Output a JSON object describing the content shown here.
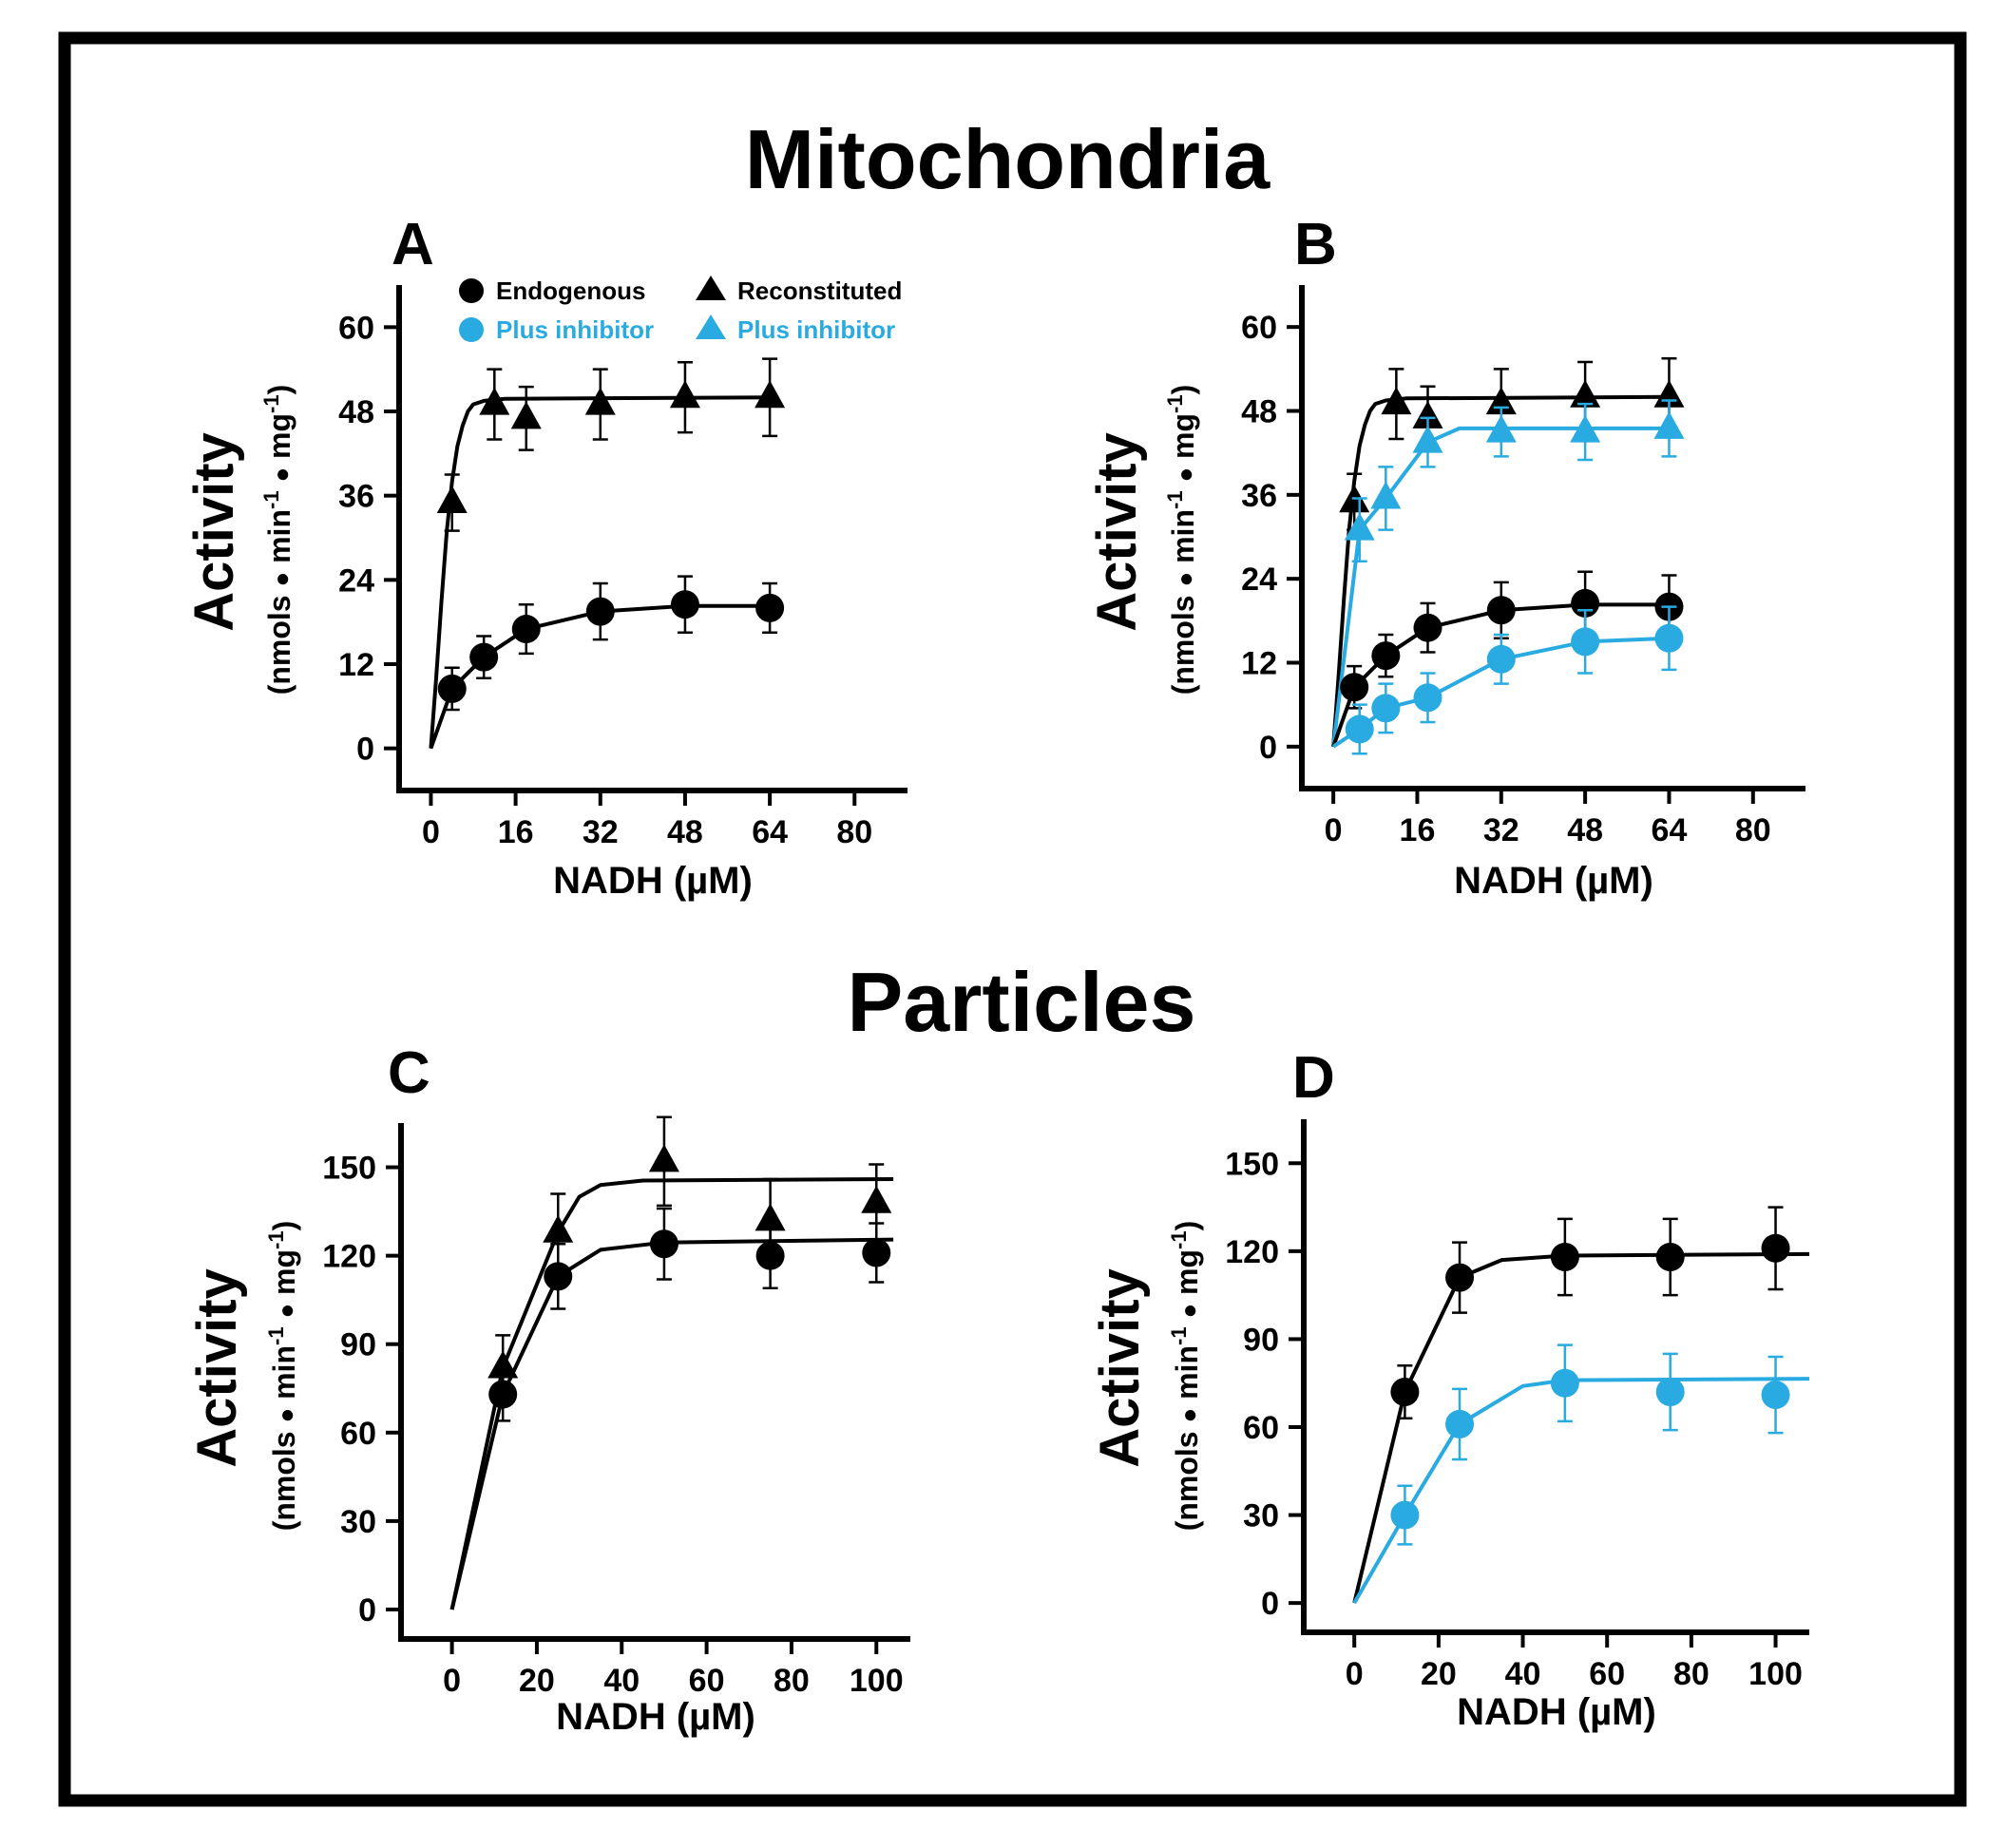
{
  "colors": {
    "black": "#000000",
    "blue": "#29abe2"
  },
  "section_titles": {
    "top": "Mitochondria",
    "bottom": "Particles"
  },
  "legend": [
    {
      "label": "Endogenous",
      "marker": "circle",
      "color": "#000000"
    },
    {
      "label": "Plus inhibitor",
      "marker": "circle",
      "color": "#29abe2"
    },
    {
      "label": "Reconstituted",
      "marker": "triangle",
      "color": "#000000"
    },
    {
      "label": "Plus inhibitor",
      "marker": "triangle",
      "color": "#29abe2"
    }
  ],
  "y_title": "Activity",
  "y_units": [
    "(nmols ",
    "●",
    " min",
    "-1",
    " ",
    "●",
    " mg",
    "-1",
    ")"
  ],
  "chart_data": [
    {
      "panel": "A",
      "type": "scatter",
      "xlabel": "NADH (µM)",
      "xlim": [
        -6,
        90
      ],
      "ylim": [
        -6,
        66
      ],
      "xticks": [
        0,
        16,
        32,
        48,
        64,
        80
      ],
      "yticks": [
        0,
        12,
        24,
        36,
        48,
        60
      ],
      "series": [
        {
          "name": "Reconstituted",
          "marker": "triangle",
          "color": "#000000",
          "x": [
            4,
            12,
            18,
            32,
            48,
            64
          ],
          "y": [
            35,
            49,
            47,
            49,
            50,
            50
          ],
          "err": [
            4,
            5,
            4.5,
            5,
            5,
            5.5
          ],
          "fit": [
            [
              0,
              0
            ],
            [
              1,
              10
            ],
            [
              2,
              21
            ],
            [
              3,
              31
            ],
            [
              4,
              38
            ],
            [
              5,
              43
            ],
            [
              6,
              46
            ],
            [
              7,
              48
            ],
            [
              8,
              49
            ],
            [
              10,
              49.5
            ],
            [
              14,
              49.8
            ],
            [
              64,
              50
            ]
          ]
        },
        {
          "name": "Endogenous",
          "marker": "circle",
          "color": "#000000",
          "x": [
            4,
            10,
            18,
            32,
            48,
            64
          ],
          "y": [
            8.5,
            13,
            17,
            19.5,
            20.5,
            20
          ],
          "err": [
            3,
            3,
            3.5,
            4,
            4,
            3.5
          ],
          "fit": [
            [
              0,
              0
            ],
            [
              4,
              8.5
            ],
            [
              10,
              13
            ],
            [
              18,
              17
            ],
            [
              32,
              19.5
            ],
            [
              48,
              20.3
            ],
            [
              64,
              20.3
            ]
          ]
        }
      ]
    },
    {
      "panel": "B",
      "type": "scatter",
      "xlabel": "NADH (µM)",
      "xlim": [
        -6,
        90
      ],
      "ylim": [
        -6,
        66
      ],
      "xticks": [
        0,
        16,
        32,
        48,
        64,
        80
      ],
      "yticks": [
        0,
        12,
        24,
        36,
        48,
        60
      ],
      "series": [
        {
          "name": "Reconstituted",
          "marker": "triangle",
          "color": "#000000",
          "x": [
            4,
            12,
            18,
            32,
            48,
            64
          ],
          "y": [
            35,
            49,
            47,
            49,
            50,
            50
          ],
          "err": [
            4,
            5,
            4.5,
            5,
            5,
            5.5
          ],
          "fit": [
            [
              0,
              0
            ],
            [
              1,
              10
            ],
            [
              2,
              21
            ],
            [
              3,
              31
            ],
            [
              4,
              38
            ],
            [
              5,
              43
            ],
            [
              6,
              46
            ],
            [
              7,
              48
            ],
            [
              8,
              49
            ],
            [
              10,
              49.5
            ],
            [
              14,
              49.8
            ],
            [
              64,
              50
            ]
          ]
        },
        {
          "name": "Plus inhibitor (reconstituted)",
          "marker": "triangle",
          "color": "#29abe2",
          "x": [
            5,
            10,
            18,
            32,
            48,
            64
          ],
          "y": [
            31,
            35.5,
            43.5,
            45,
            45,
            45.5
          ],
          "err": [
            4.5,
            4.5,
            3.5,
            3.5,
            4,
            4
          ],
          "fit": [
            [
              0,
              0
            ],
            [
              5,
              31
            ],
            [
              10,
              35.5
            ],
            [
              18,
              43.5
            ],
            [
              24,
              45.5
            ],
            [
              64,
              45.5
            ]
          ]
        },
        {
          "name": "Endogenous",
          "marker": "circle",
          "color": "#000000",
          "x": [
            4,
            10,
            18,
            32,
            48,
            64
          ],
          "y": [
            8.5,
            13,
            17,
            19.5,
            20.5,
            20
          ],
          "err": [
            3,
            3,
            3.5,
            4,
            4.5,
            4.5
          ],
          "fit": [
            [
              0,
              0
            ],
            [
              4,
              8.5
            ],
            [
              10,
              13
            ],
            [
              18,
              17
            ],
            [
              32,
              19.5
            ],
            [
              48,
              20.3
            ],
            [
              64,
              20.3
            ]
          ]
        },
        {
          "name": "Plus inhibitor (endogenous)",
          "marker": "circle",
          "color": "#29abe2",
          "x": [
            5,
            10,
            18,
            32,
            48,
            64
          ],
          "y": [
            2.5,
            5.5,
            7,
            12.5,
            15,
            15.5
          ],
          "err": [
            3.5,
            3.5,
            3.5,
            3.5,
            4.5,
            4.5
          ],
          "fit": [
            [
              0,
              0
            ],
            [
              5,
              2.5
            ],
            [
              10,
              5.5
            ],
            [
              18,
              7
            ],
            [
              32,
              12.5
            ],
            [
              48,
              15
            ],
            [
              64,
              15.5
            ]
          ]
        }
      ]
    },
    {
      "panel": "C",
      "type": "scatter",
      "xlabel": "NADH (µM)",
      "xlim": [
        -12,
        108
      ],
      "ylim": [
        -10,
        165
      ],
      "xticks": [
        0,
        20,
        40,
        60,
        80,
        100
      ],
      "yticks": [
        0,
        30,
        60,
        90,
        120,
        150
      ],
      "series": [
        {
          "name": "Reconstituted",
          "marker": "triangle",
          "color": "#000000",
          "x": [
            12,
            25,
            50,
            75,
            100
          ],
          "y": [
            82,
            128,
            152,
            132,
            138
          ],
          "err": [
            11,
            13,
            15,
            14,
            13
          ],
          "fit": [
            [
              0,
              0
            ],
            [
              12,
              82
            ],
            [
              25,
              128
            ],
            [
              30,
              140
            ],
            [
              35,
              144
            ],
            [
              45,
              145.5
            ],
            [
              104,
              146
            ]
          ]
        },
        {
          "name": "Endogenous",
          "marker": "circle",
          "color": "#000000",
          "x": [
            12,
            25,
            50,
            75,
            100
          ],
          "y": [
            73,
            113,
            124,
            120,
            121
          ],
          "err": [
            9,
            11,
            12,
            11,
            10
          ],
          "fit": [
            [
              0,
              0
            ],
            [
              12,
              73
            ],
            [
              25,
              113
            ],
            [
              35,
              122
            ],
            [
              50,
              124.5
            ],
            [
              104,
              125.5
            ]
          ]
        }
      ]
    },
    {
      "panel": "D",
      "type": "scatter",
      "xlabel": "NADH (µM)",
      "xlim": [
        -12,
        108
      ],
      "ylim": [
        -10,
        165
      ],
      "xticks": [
        0,
        20,
        40,
        60,
        80,
        100
      ],
      "yticks": [
        0,
        30,
        60,
        90,
        120,
        150
      ],
      "series": [
        {
          "name": "Endogenous",
          "marker": "circle",
          "color": "#000000",
          "x": [
            12,
            25,
            50,
            75,
            100
          ],
          "y": [
            72,
            111,
            118,
            118,
            121
          ],
          "err": [
            9,
            12,
            13,
            13,
            14
          ],
          "fit": [
            [
              0,
              0
            ],
            [
              12,
              72
            ],
            [
              25,
              111
            ],
            [
              35,
              117
            ],
            [
              50,
              118.5
            ],
            [
              108,
              119
            ]
          ]
        },
        {
          "name": "Plus inhibitor",
          "marker": "circle",
          "color": "#29abe2",
          "x": [
            12,
            25,
            50,
            75,
            100
          ],
          "y": [
            30,
            61,
            75,
            72,
            71
          ],
          "err": [
            10,
            12,
            13,
            13,
            13
          ],
          "fit": [
            [
              0,
              0
            ],
            [
              12,
              30
            ],
            [
              25,
              61
            ],
            [
              40,
              74
            ],
            [
              50,
              76
            ],
            [
              108,
              76.5
            ]
          ]
        }
      ]
    }
  ]
}
